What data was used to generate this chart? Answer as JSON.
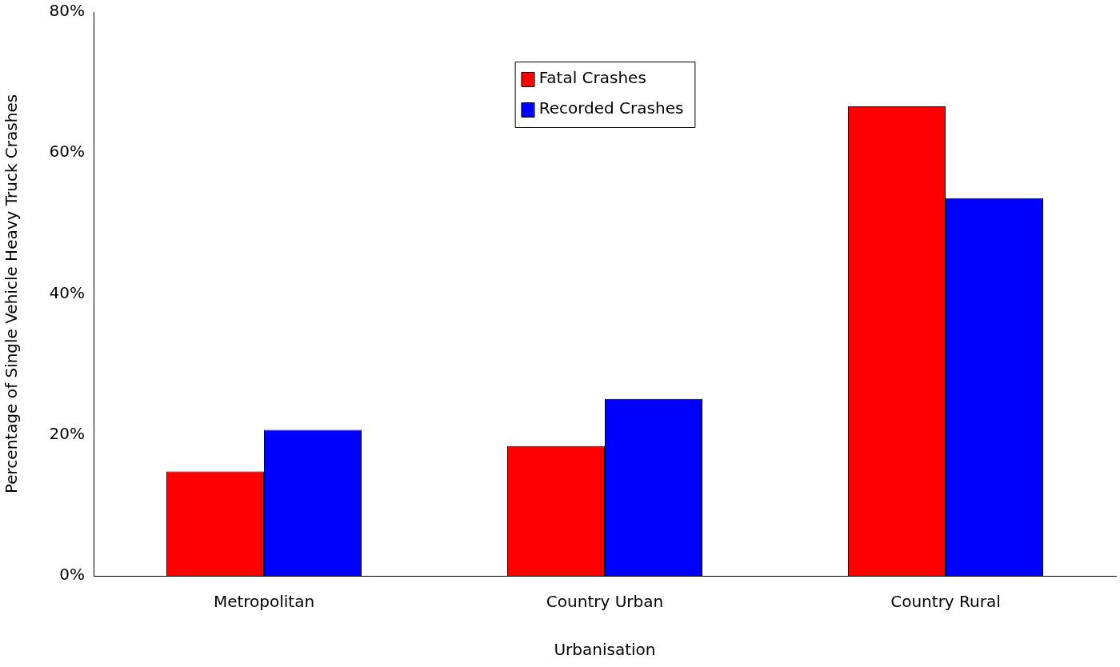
{
  "chart_data": {
    "type": "bar",
    "xlabel": "Urbanisation",
    "ylabel": "Percentage of Single Vehicle Heavy Truck Crashes",
    "categories": [
      "Metropolitan",
      "Country Urban",
      "Country Rural"
    ],
    "series": [
      {
        "name": "Fatal Crashes",
        "color": "#ff0000",
        "values": [
          14.8,
          18.4,
          66.6
        ]
      },
      {
        "name": "Recorded Crashes",
        "color": "#0000ff",
        "values": [
          20.7,
          25.1,
          53.6
        ]
      }
    ],
    "ylim": [
      0,
      80
    ],
    "yticks": [
      {
        "value": 0,
        "label": "0%"
      },
      {
        "value": 20,
        "label": "20%"
      },
      {
        "value": 40,
        "label": "40%"
      },
      {
        "value": 60,
        "label": "60%"
      },
      {
        "value": 80,
        "label": "80%"
      }
    ],
    "grid": false,
    "legend": "top"
  }
}
